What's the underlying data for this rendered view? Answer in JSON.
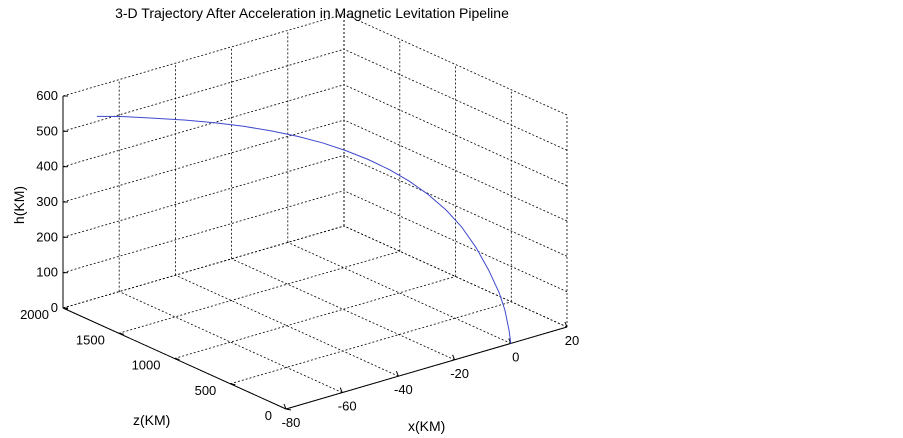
{
  "chart_data": {
    "type": "line",
    "title": "3-D Trajectory After Acceleration in Magnetic Levitation Pipeline",
    "xlabel": "x(KM)",
    "zlabel": "z(KM)",
    "hlabel": "h(KM)",
    "x_ticks": [
      -80,
      -60,
      -40,
      -20,
      0,
      20
    ],
    "z_ticks": [
      0,
      500,
      1000,
      1500,
      2000
    ],
    "h_ticks": [
      0,
      100,
      200,
      300,
      400,
      500,
      600
    ],
    "xlim": [
      -80,
      20
    ],
    "zlim": [
      0,
      2000
    ],
    "hlim": [
      0,
      600
    ],
    "grid": true,
    "series": [
      {
        "color": "#3f48cc",
        "x": [
          0,
          -0.2,
          -0.5,
          -1,
          -1.9,
          -3.2,
          -4.8,
          -6.8,
          -9.2,
          -12,
          -15,
          -18.6,
          -22.6,
          -27,
          -31.8,
          -37,
          -42.7,
          -48.6,
          -55,
          -61.7,
          -68.7,
          -74.3
        ],
        "z": [
          0,
          10,
          40,
          80,
          150,
          230,
          320,
          410,
          510,
          610,
          710,
          810,
          910,
          1010,
          1110,
          1210,
          1320,
          1420,
          1530,
          1640,
          1760,
          1840
        ],
        "h": [
          0,
          35,
          90,
          135,
          190,
          245,
          295,
          335,
          370,
          400,
          425,
          448,
          468,
          486,
          501,
          514,
          525,
          534,
          541,
          546,
          550,
          552
        ]
      }
    ]
  }
}
